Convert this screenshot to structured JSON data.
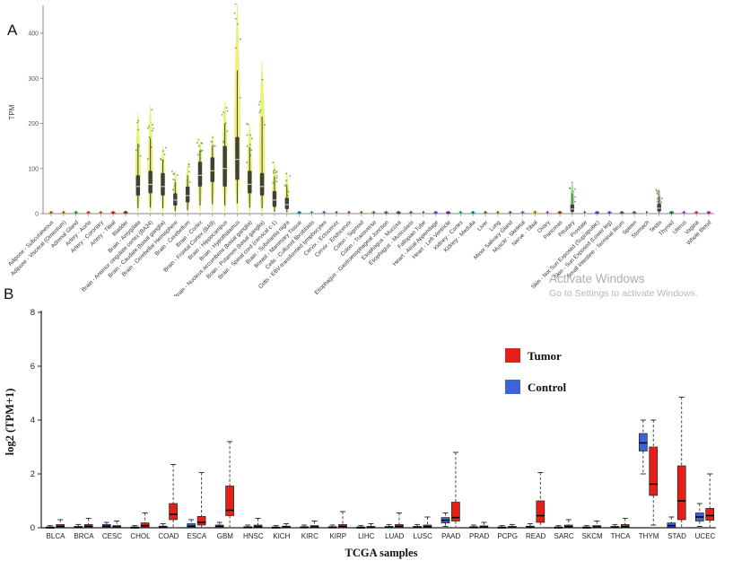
{
  "figure": {
    "panel_a_label": "A",
    "panel_b_label": "B",
    "watermark_line1": "Activate Windows",
    "watermark_line2": "Go to Settings to activate Windows."
  },
  "chart_data": [
    {
      "type": "violin",
      "title": "",
      "ylabel": "TPM",
      "xlabel": "",
      "ylim": [
        0,
        470
      ],
      "yticks": [
        0,
        100,
        200,
        300,
        400
      ],
      "brain_color": "#e9ee62",
      "box_color": "#3f3f3f",
      "tissues": [
        {
          "label": "Adipose - Subcutaneous",
          "color": "#ff8c1a",
          "q1": 0.2,
          "med": 0.5,
          "q3": 1,
          "max": 3
        },
        {
          "label": "Adipose - Visceral (Omentum)",
          "color": "#ffb31a",
          "q1": 0.2,
          "med": 0.5,
          "q3": 1,
          "max": 3
        },
        {
          "label": "Adrenal Gland",
          "color": "#4ddb4d",
          "q1": 0.2,
          "med": 0.5,
          "q3": 1,
          "max": 4
        },
        {
          "label": "Artery - Aorta",
          "color": "#ff6666",
          "q1": 0.2,
          "med": 0.5,
          "q3": 1,
          "max": 3
        },
        {
          "label": "Artery - Coronary",
          "color": "#ffa64d",
          "q1": 0.2,
          "med": 0.5,
          "q3": 1,
          "max": 3
        },
        {
          "label": "Artery - Tibial",
          "color": "#ff1a1a",
          "q1": 0.2,
          "med": 0.5,
          "q3": 1,
          "max": 3
        },
        {
          "label": "Bladder",
          "color": "#991f00",
          "q1": 0.3,
          "med": 0.8,
          "q3": 1.5,
          "max": 5
        },
        {
          "label": "Brain - Amygdala",
          "color": "#e9ee62",
          "q1": 40,
          "med": 60,
          "q3": 85,
          "max": 225
        },
        {
          "label": "Brain - Anterior cingulate cortex (BA24)",
          "color": "#e9ee62",
          "q1": 45,
          "med": 65,
          "q3": 95,
          "max": 240
        },
        {
          "label": "Brain - Caudate (basal ganglia)",
          "color": "#e9ee62",
          "q1": 40,
          "med": 60,
          "q3": 90,
          "max": 150
        },
        {
          "label": "Brain - Cerebellar Hemisphere",
          "color": "#e9ee62",
          "q1": 18,
          "med": 30,
          "q3": 45,
          "max": 95
        },
        {
          "label": "Brain - Cerebellum",
          "color": "#e9ee62",
          "q1": 25,
          "med": 40,
          "q3": 60,
          "max": 110
        },
        {
          "label": "Brain - Cortex",
          "color": "#e9ee62",
          "q1": 60,
          "med": 85,
          "q3": 115,
          "max": 165
        },
        {
          "label": "Brain - Frontal Cortex (BA9)",
          "color": "#e9ee62",
          "q1": 70,
          "med": 95,
          "q3": 125,
          "max": 175
        },
        {
          "label": "Brain - Hippocampus",
          "color": "#e9ee62",
          "q1": 60,
          "med": 100,
          "q3": 150,
          "max": 250
        },
        {
          "label": "Brain - Hypothalamus",
          "color": "#e9ee62",
          "q1": 75,
          "med": 120,
          "q3": 170,
          "max": 465
        },
        {
          "label": "Brain - Nucleus accumbens (basal ganglia)",
          "color": "#e9ee62",
          "q1": 45,
          "med": 65,
          "q3": 95,
          "max": 200
        },
        {
          "label": "Brain - Putamen (basal ganglia)",
          "color": "#e9ee62",
          "q1": 40,
          "med": 60,
          "q3": 90,
          "max": 340
        },
        {
          "label": "Brain - Spinal cord (cervical c-1)",
          "color": "#e9ee62",
          "q1": 15,
          "med": 30,
          "q3": 50,
          "max": 115
        },
        {
          "label": "Brain - Substantia nigra",
          "color": "#e9ee62",
          "q1": 10,
          "med": 20,
          "q3": 35,
          "max": 90
        },
        {
          "label": "Breast - Mammary Tissue",
          "color": "#00b3b3",
          "q1": 0.2,
          "med": 0.5,
          "q3": 1,
          "max": 4
        },
        {
          "label": "Cells - Cultured fibroblasts",
          "color": "#99e6ff",
          "q1": 0.1,
          "med": 0.3,
          "q3": 0.6,
          "max": 2
        },
        {
          "label": "Cells - EBV-transformed lymphocytes",
          "color": "#cc80ff",
          "q1": 0.1,
          "med": 0.3,
          "q3": 0.6,
          "max": 2
        },
        {
          "label": "Cervix - Ectocervix",
          "color": "#ffb3cc",
          "q1": 0.1,
          "med": 0.3,
          "q3": 0.6,
          "max": 2
        },
        {
          "label": "Cervix - Endocervix",
          "color": "#ff99bb",
          "q1": 0.1,
          "med": 0.3,
          "q3": 0.6,
          "max": 2
        },
        {
          "label": "Colon - Sigmoid",
          "color": "#edbf85",
          "q1": 0.2,
          "med": 0.5,
          "q3": 1,
          "max": 3
        },
        {
          "label": "Colon - Transverse",
          "color": "#cc9966",
          "q1": 0.2,
          "med": 0.5,
          "q3": 1,
          "max": 3
        },
        {
          "label": "Esophagus - Gastroesophageal Junction",
          "color": "#8b7355",
          "q1": 0.2,
          "med": 0.5,
          "q3": 1,
          "max": 3
        },
        {
          "label": "Esophagus - Mucosa",
          "color": "#663300",
          "q1": 0.2,
          "med": 0.5,
          "q3": 1,
          "max": 3
        },
        {
          "label": "Esophagus - Muscularis",
          "color": "#b38f80",
          "q1": 0.2,
          "med": 0.5,
          "q3": 1,
          "max": 3
        },
        {
          "label": "Fallopian Tube",
          "color": "#ffccdd",
          "q1": 0.1,
          "med": 0.3,
          "q3": 0.6,
          "max": 2
        },
        {
          "label": "Heart - Atrial Appendage",
          "color": "#9933ff",
          "q1": 0.2,
          "med": 0.5,
          "q3": 1,
          "max": 3
        },
        {
          "label": "Heart - Left Ventricle",
          "color": "#660099",
          "q1": 0.2,
          "med": 0.5,
          "q3": 1,
          "max": 3
        },
        {
          "label": "Kidney - Cortex",
          "color": "#33ffcc",
          "q1": 0.2,
          "med": 0.5,
          "q3": 1,
          "max": 3
        },
        {
          "label": "Kidney - Medulla",
          "color": "#00cca3",
          "q1": 0.1,
          "med": 0.3,
          "q3": 0.6,
          "max": 2
        },
        {
          "label": "Liver",
          "color": "#99b35c",
          "q1": 0.2,
          "med": 0.5,
          "q3": 1,
          "max": 3
        },
        {
          "label": "Lung",
          "color": "#99ff33",
          "q1": 0.2,
          "med": 0.5,
          "q3": 1,
          "max": 4
        },
        {
          "label": "Minor Salivary Gland",
          "color": "#99b38a",
          "q1": 0.2,
          "med": 0.5,
          "q3": 1,
          "max": 3
        },
        {
          "label": "Muscle - Skeletal",
          "color": "#9999ff",
          "q1": 0.2,
          "med": 0.5,
          "q3": 1,
          "max": 3
        },
        {
          "label": "Nerve - Tibial",
          "color": "#ffd700",
          "q1": 0.3,
          "med": 0.8,
          "q3": 1.5,
          "max": 6
        },
        {
          "label": "Ovary",
          "color": "#ff99ff",
          "q1": 0.2,
          "med": 0.5,
          "q3": 1,
          "max": 3
        },
        {
          "label": "Pancreas",
          "color": "#995c22",
          "q1": 0.3,
          "med": 0.8,
          "q3": 1.5,
          "max": 5
        },
        {
          "label": "Pituitary",
          "color": "#8fdc7a",
          "q1": 4,
          "med": 10,
          "q3": 20,
          "max": 70
        },
        {
          "label": "Prostate",
          "color": "#d9d9d9",
          "q1": 0.2,
          "med": 0.5,
          "q3": 1,
          "max": 3
        },
        {
          "label": "Skin - Not Sun Exposed (Suprapubic)",
          "color": "#3333ff",
          "q1": 0.2,
          "med": 0.5,
          "q3": 1,
          "max": 4
        },
        {
          "label": "Skin - Sun Exposed (Lower leg)",
          "color": "#6666ff",
          "q1": 0.2,
          "med": 0.5,
          "q3": 1,
          "max": 4
        },
        {
          "label": "Small Intestine - Terminal Ileum",
          "color": "#666633",
          "q1": 0.2,
          "med": 0.5,
          "q3": 1,
          "max": 3
        },
        {
          "label": "Spleen",
          "color": "#778855",
          "q1": 0.2,
          "med": 0.5,
          "q3": 1,
          "max": 3
        },
        {
          "label": "Stomach",
          "color": "#ffe6b3",
          "q1": 0.2,
          "med": 0.5,
          "q3": 1,
          "max": 3
        },
        {
          "label": "Testis",
          "color": "#b0b0b0",
          "q1": 5,
          "med": 12,
          "q3": 22,
          "max": 55
        },
        {
          "label": "Thyroid",
          "color": "#008000",
          "q1": 0.2,
          "med": 0.5,
          "q3": 1,
          "max": 4
        },
        {
          "label": "Uterus",
          "color": "#ff66ff",
          "q1": 0.2,
          "med": 0.5,
          "q3": 1,
          "max": 3
        },
        {
          "label": "Vagina",
          "color": "#ff5599",
          "q1": 0.2,
          "med": 0.5,
          "q3": 1,
          "max": 3
        },
        {
          "label": "Whole Blood",
          "color": "#ff00bb",
          "q1": 0.2,
          "med": 0.5,
          "q3": 1,
          "max": 3
        }
      ]
    },
    {
      "type": "box",
      "title": "",
      "xlabel": "TCGA samples",
      "ylabel": "log2 (TPM+1)",
      "ylim": [
        0,
        8
      ],
      "yticks": [
        0,
        2,
        4,
        6,
        8
      ],
      "legend_position": "upper right",
      "legend": [
        {
          "name": "Tumor",
          "color": "#e32119"
        },
        {
          "name": "Control",
          "color": "#3a64d8"
        }
      ],
      "categories": [
        "BLCA",
        "BRCA",
        "CESC",
        "CHOL",
        "COAD",
        "ESCA",
        "GBM",
        "HNSC",
        "KICH",
        "KIRC",
        "KIRP",
        "LIHC",
        "LUAD",
        "LUSC",
        "PAAD",
        "PRAD",
        "PCPG",
        "READ",
        "SARC",
        "SKCM",
        "THCA",
        "THYM",
        "STAD",
        "UCEC"
      ],
      "box_format": [
        "low_whisker",
        "q1",
        "median",
        "q3",
        "high_whisker"
      ],
      "series": [
        {
          "name": "Tumor",
          "color": "#e32119",
          "boxes": [
            [
              0,
              0.02,
              0.05,
              0.12,
              0.3
            ],
            [
              0,
              0.02,
              0.05,
              0.12,
              0.35
            ],
            [
              0,
              0.01,
              0.03,
              0.08,
              0.25
            ],
            [
              0,
              0.03,
              0.08,
              0.18,
              0.55
            ],
            [
              0,
              0.3,
              0.5,
              0.9,
              2.35
            ],
            [
              0,
              0.1,
              0.2,
              0.42,
              2.05
            ],
            [
              0,
              0.45,
              0.65,
              1.55,
              3.2
            ],
            [
              0,
              0.01,
              0.04,
              0.1,
              0.35
            ],
            [
              0,
              0,
              0.02,
              0.06,
              0.15
            ],
            [
              0,
              0.01,
              0.03,
              0.08,
              0.25
            ],
            [
              0,
              0.02,
              0.05,
              0.12,
              0.6
            ],
            [
              0,
              0,
              0.02,
              0.05,
              0.15
            ],
            [
              0,
              0.02,
              0.05,
              0.12,
              0.55
            ],
            [
              0,
              0.02,
              0.04,
              0.1,
              0.4
            ],
            [
              0,
              0.25,
              0.38,
              0.95,
              2.8
            ],
            [
              0,
              0.01,
              0.03,
              0.07,
              0.2
            ],
            [
              0,
              0,
              0.02,
              0.05,
              0.12
            ],
            [
              0,
              0.2,
              0.45,
              1.0,
              2.05
            ],
            [
              0,
              0.01,
              0.04,
              0.1,
              0.3
            ],
            [
              0,
              0.01,
              0.03,
              0.08,
              0.25
            ],
            [
              0,
              0.01,
              0.04,
              0.12,
              0.35
            ],
            [
              0.1,
              1.2,
              1.62,
              3.0,
              4.0
            ],
            [
              0,
              0.3,
              1.0,
              2.3,
              4.85
            ],
            [
              0,
              0.28,
              0.45,
              0.72,
              2.0
            ]
          ]
        },
        {
          "name": "Control",
          "color": "#3a64d8",
          "boxes": [
            [
              0,
              0,
              0.01,
              0.03,
              0.08
            ],
            [
              0,
              0,
              0.02,
              0.05,
              0.12
            ],
            [
              0,
              0.02,
              0.06,
              0.12,
              0.2
            ],
            [
              0,
              0,
              0.01,
              0.03,
              0.08
            ],
            [
              0,
              0,
              0.02,
              0.06,
              0.15
            ],
            [
              0,
              0.02,
              0.06,
              0.15,
              0.3
            ],
            [
              0,
              0,
              0.05,
              0.1,
              0.2
            ],
            [
              0,
              0,
              0.01,
              0.04,
              0.1
            ],
            [
              0,
              0,
              0.01,
              0.03,
              0.08
            ],
            [
              0,
              0,
              0.01,
              0.04,
              0.1
            ],
            [
              0,
              0,
              0.01,
              0.04,
              0.1
            ],
            [
              0,
              0,
              0.01,
              0.03,
              0.08
            ],
            [
              0,
              0,
              0.02,
              0.05,
              0.12
            ],
            [
              0,
              0,
              0.02,
              0.05,
              0.12
            ],
            [
              0.05,
              0.18,
              0.28,
              0.38,
              0.55
            ],
            [
              0,
              0,
              0.01,
              0.04,
              0.1
            ],
            [
              0,
              0,
              0.01,
              0.03,
              0.08
            ],
            [
              0,
              0,
              0.02,
              0.06,
              0.15
            ],
            [
              0,
              0,
              0.01,
              0.03,
              0.08
            ],
            [
              0,
              0,
              0.01,
              0.03,
              0.08
            ],
            [
              0,
              0,
              0.02,
              0.05,
              0.12
            ],
            [
              2.0,
              2.85,
              3.15,
              3.5,
              4.0
            ],
            [
              0,
              0.02,
              0.08,
              0.18,
              0.4
            ],
            [
              0.05,
              0.25,
              0.4,
              0.55,
              0.9
            ]
          ]
        }
      ]
    }
  ]
}
